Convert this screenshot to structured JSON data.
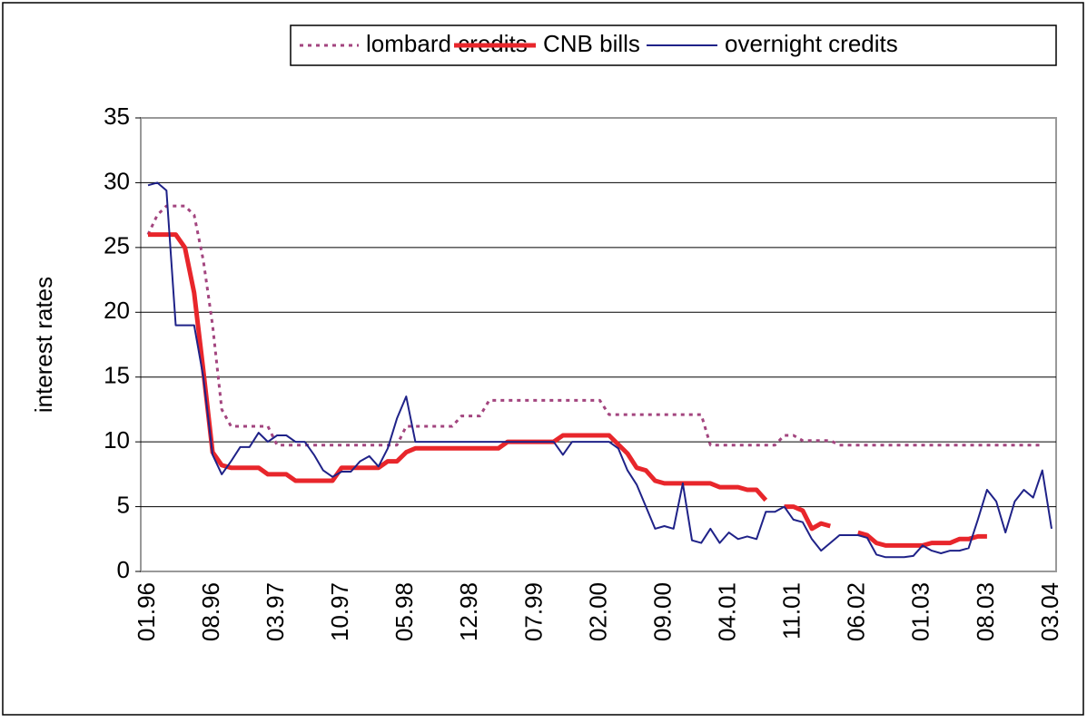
{
  "chart_data": {
    "type": "line",
    "y_label": "interest rates",
    "categories": [
      "01.96",
      null,
      null,
      null,
      null,
      null,
      null,
      "08.96",
      null,
      null,
      null,
      null,
      null,
      null,
      "03.97",
      null,
      null,
      null,
      null,
      null,
      null,
      "10.97",
      null,
      null,
      null,
      null,
      null,
      null,
      "05.98",
      null,
      null,
      null,
      null,
      null,
      null,
      "12.98",
      null,
      null,
      null,
      null,
      null,
      null,
      "07.99",
      null,
      null,
      null,
      null,
      null,
      null,
      "02.00",
      null,
      null,
      null,
      null,
      null,
      null,
      "09.00",
      null,
      null,
      null,
      null,
      null,
      null,
      "04.01",
      null,
      null,
      null,
      null,
      null,
      null,
      "11.01",
      null,
      null,
      null,
      null,
      null,
      null,
      "06.02",
      null,
      null,
      null,
      null,
      null,
      null,
      "01.03",
      null,
      null,
      null,
      null,
      null,
      null,
      "08.03",
      null,
      null,
      null,
      null,
      null,
      null,
      "03.04"
    ],
    "series": [
      {
        "name": "lombard credits",
        "color": "#a3457f",
        "style": "dotted",
        "values": [
          26,
          27.5,
          28.2,
          28.2,
          28.2,
          27.5,
          24,
          19,
          12.5,
          11.2,
          11.2,
          11.2,
          11.2,
          11.2,
          9.75,
          9.75,
          9.75,
          9.75,
          9.75,
          9.75,
          9.75,
          9.75,
          9.75,
          9.75,
          9.75,
          9.75,
          9.75,
          9.75,
          11.2,
          11.2,
          11.2,
          11.2,
          11.2,
          11.2,
          12,
          12,
          12,
          13.2,
          13.2,
          13.2,
          13.2,
          13.2,
          13.2,
          13.2,
          13.2,
          13.2,
          13.2,
          13.2,
          13.2,
          13.2,
          12.1,
          12.1,
          12.1,
          12.1,
          12.1,
          12.1,
          12.1,
          12.1,
          12.1,
          12.1,
          12.1,
          9.75,
          9.75,
          9.75,
          9.75,
          9.75,
          9.75,
          9.75,
          9.75,
          10.5,
          10.5,
          10.1,
          10.1,
          10.1,
          10.1,
          9.75,
          9.75,
          9.75,
          9.75,
          9.75,
          9.75,
          9.75,
          9.75,
          9.75,
          9.75,
          9.75,
          9.75,
          9.75,
          9.75,
          9.75,
          9.75,
          9.75,
          9.75,
          9.75,
          9.75,
          9.75,
          9.75,
          9.75,
          null
        ]
      },
      {
        "name": "CNB bills",
        "color": "#e8262b",
        "style": "thick",
        "values": [
          26,
          26,
          26,
          26,
          25,
          21.5,
          15.5,
          9.2,
          8.2,
          8,
          8,
          8,
          8,
          7.5,
          7.5,
          7.5,
          7,
          7,
          7,
          7,
          7,
          8,
          8,
          8,
          8,
          8,
          8.5,
          8.5,
          9.2,
          9.5,
          9.5,
          9.5,
          9.5,
          9.5,
          9.5,
          9.5,
          9.5,
          9.5,
          9.5,
          10,
          10,
          10,
          10,
          10,
          10,
          10.5,
          10.5,
          10.5,
          10.5,
          10.5,
          10.5,
          9.8,
          9.1,
          8,
          7.8,
          7,
          6.8,
          6.8,
          6.8,
          6.8,
          6.8,
          6.8,
          6.5,
          6.5,
          6.5,
          6.3,
          6.3,
          5.5,
          null,
          5,
          5,
          4.7,
          3.3,
          3.7,
          3.5,
          null,
          null,
          3,
          2.8,
          2.2,
          2,
          2,
          2,
          2,
          2,
          2.2,
          2.2,
          2.2,
          2.5,
          2.5,
          2.7,
          2.7,
          null,
          null,
          null,
          null,
          null,
          null,
          null
        ]
      },
      {
        "name": "overnight credits",
        "color": "#1f2288",
        "style": "thin",
        "values": [
          29.8,
          30,
          29.4,
          19,
          19,
          19,
          15,
          9,
          7.5,
          8.5,
          9.6,
          9.6,
          10.7,
          10,
          10.5,
          10.5,
          10,
          10,
          9,
          7.8,
          7.3,
          7.7,
          7.7,
          8.5,
          8.9,
          8.1,
          9.5,
          11.8,
          13.5,
          10,
          10,
          10,
          10,
          10,
          10,
          10,
          10,
          10,
          10,
          10,
          10,
          10,
          10,
          10,
          10,
          9,
          10,
          10,
          10,
          10,
          10,
          9.5,
          7.8,
          6.7,
          5,
          3.3,
          3.5,
          3.3,
          6.8,
          2.4,
          2.2,
          3.3,
          2.2,
          3,
          2.5,
          2.7,
          2.5,
          4.6,
          4.6,
          5,
          4,
          3.8,
          2.5,
          1.6,
          2.2,
          2.8,
          2.8,
          2.8,
          2.6,
          1.3,
          1.1,
          1.1,
          1.1,
          1.2,
          2,
          1.6,
          1.4,
          1.6,
          1.6,
          1.8,
          4,
          6.3,
          5.4,
          3,
          5.4,
          6.3,
          5.7,
          7.8,
          3.3
        ]
      }
    ],
    "ylim": [
      0,
      35
    ],
    "yticks": [
      0,
      5,
      10,
      15,
      20,
      25,
      30,
      35
    ],
    "grid": true
  }
}
